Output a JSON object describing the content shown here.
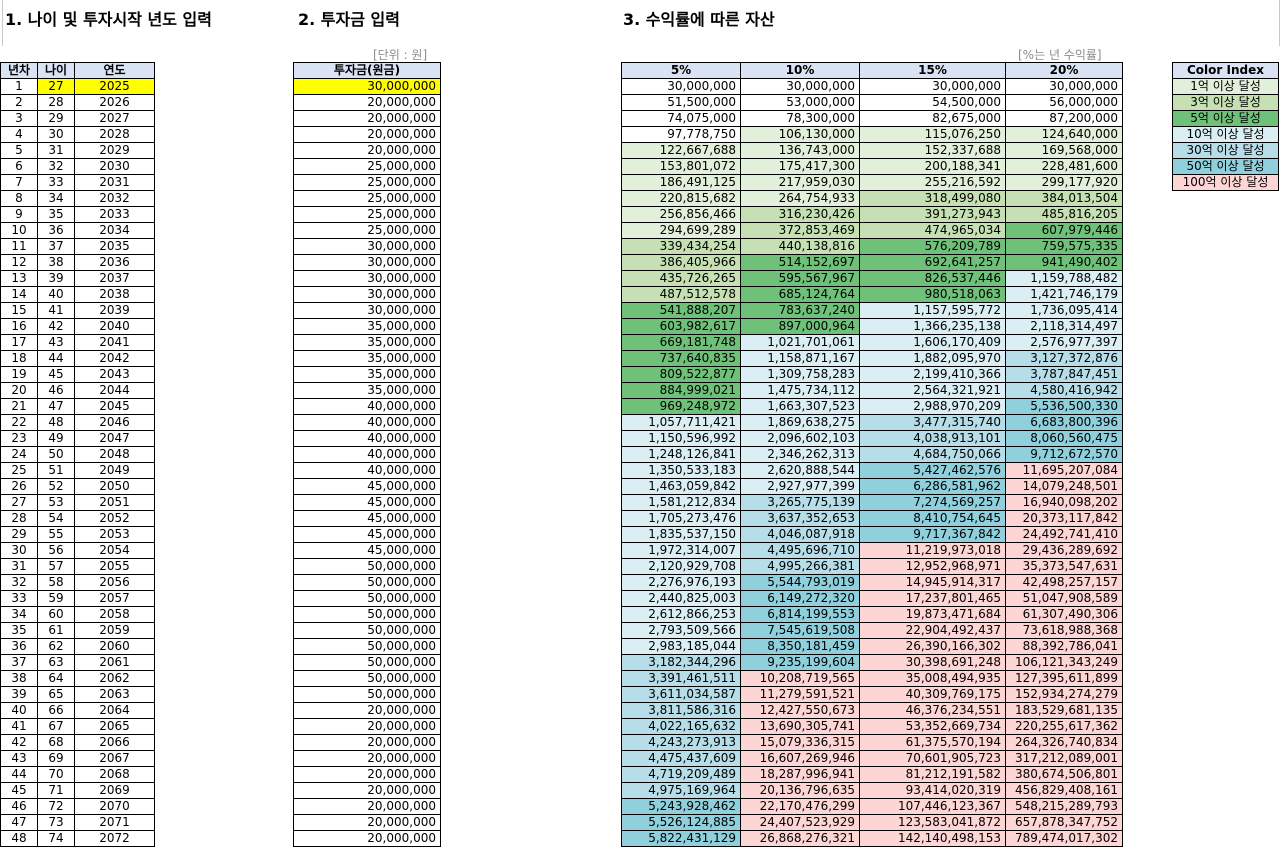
{
  "sections": {
    "s1": "1. 나이 및 투자시작 년도 입력",
    "s2": "2. 투자금 입력",
    "s3": "3. 수익률에 따른 자산"
  },
  "unit_note": "[단위 : 원]",
  "return_note": "[%는 년 수익률]",
  "year_table": {
    "headers": [
      "년차",
      "나이",
      "연도"
    ],
    "rows": [
      [
        "1",
        "27",
        "2025"
      ],
      [
        "2",
        "28",
        "2026"
      ],
      [
        "3",
        "29",
        "2027"
      ],
      [
        "4",
        "30",
        "2028"
      ],
      [
        "5",
        "31",
        "2029"
      ],
      [
        "6",
        "32",
        "2030"
      ],
      [
        "7",
        "33",
        "2031"
      ],
      [
        "8",
        "34",
        "2032"
      ],
      [
        "9",
        "35",
        "2033"
      ],
      [
        "10",
        "36",
        "2034"
      ],
      [
        "11",
        "37",
        "2035"
      ],
      [
        "12",
        "38",
        "2036"
      ],
      [
        "13",
        "39",
        "2037"
      ],
      [
        "14",
        "40",
        "2038"
      ],
      [
        "15",
        "41",
        "2039"
      ],
      [
        "16",
        "42",
        "2040"
      ],
      [
        "17",
        "43",
        "2041"
      ],
      [
        "18",
        "44",
        "2042"
      ],
      [
        "19",
        "45",
        "2043"
      ],
      [
        "20",
        "46",
        "2044"
      ],
      [
        "21",
        "47",
        "2045"
      ],
      [
        "22",
        "48",
        "2046"
      ],
      [
        "23",
        "49",
        "2047"
      ],
      [
        "24",
        "50",
        "2048"
      ],
      [
        "25",
        "51",
        "2049"
      ],
      [
        "26",
        "52",
        "2050"
      ],
      [
        "27",
        "53",
        "2051"
      ],
      [
        "28",
        "54",
        "2052"
      ],
      [
        "29",
        "55",
        "2053"
      ],
      [
        "30",
        "56",
        "2054"
      ],
      [
        "31",
        "57",
        "2055"
      ],
      [
        "32",
        "58",
        "2056"
      ],
      [
        "33",
        "59",
        "2057"
      ],
      [
        "34",
        "60",
        "2058"
      ],
      [
        "35",
        "61",
        "2059"
      ],
      [
        "36",
        "62",
        "2060"
      ],
      [
        "37",
        "63",
        "2061"
      ],
      [
        "38",
        "64",
        "2062"
      ],
      [
        "39",
        "65",
        "2063"
      ],
      [
        "40",
        "66",
        "2064"
      ],
      [
        "41",
        "67",
        "2065"
      ],
      [
        "42",
        "68",
        "2066"
      ],
      [
        "43",
        "69",
        "2067"
      ],
      [
        "44",
        "70",
        "2068"
      ],
      [
        "45",
        "71",
        "2069"
      ],
      [
        "46",
        "72",
        "2070"
      ],
      [
        "47",
        "73",
        "2071"
      ],
      [
        "48",
        "74",
        "2072"
      ]
    ]
  },
  "investment": {
    "header": "투자금(원금)",
    "values": [
      "30,000,000",
      "20,000,000",
      "20,000,000",
      "20,000,000",
      "20,000,000",
      "25,000,000",
      "25,000,000",
      "25,000,000",
      "25,000,000",
      "25,000,000",
      "30,000,000",
      "30,000,000",
      "30,000,000",
      "30,000,000",
      "30,000,000",
      "35,000,000",
      "35,000,000",
      "35,000,000",
      "35,000,000",
      "35,000,000",
      "40,000,000",
      "40,000,000",
      "40,000,000",
      "40,000,000",
      "40,000,000",
      "45,000,000",
      "45,000,000",
      "45,000,000",
      "45,000,000",
      "45,000,000",
      "50,000,000",
      "50,000,000",
      "50,000,000",
      "50,000,000",
      "50,000,000",
      "50,000,000",
      "50,000,000",
      "50,000,000",
      "50,000,000",
      "20,000,000",
      "20,000,000",
      "20,000,000",
      "20,000,000",
      "20,000,000",
      "20,000,000",
      "20,000,000",
      "20,000,000",
      "20,000,000"
    ]
  },
  "assets": {
    "headers": [
      "5%",
      "10%",
      "15%",
      "20%"
    ],
    "rows": [
      [
        "30,000,000",
        "30,000,000",
        "30,000,000",
        "30,000,000"
      ],
      [
        "51,500,000",
        "53,000,000",
        "54,500,000",
        "56,000,000"
      ],
      [
        "74,075,000",
        "78,300,000",
        "82,675,000",
        "87,200,000"
      ],
      [
        "97,778,750",
        "106,130,000",
        "115,076,250",
        "124,640,000"
      ],
      [
        "122,667,688",
        "136,743,000",
        "152,337,688",
        "169,568,000"
      ],
      [
        "153,801,072",
        "175,417,300",
        "200,188,341",
        "228,481,600"
      ],
      [
        "186,491,125",
        "217,959,030",
        "255,216,592",
        "299,177,920"
      ],
      [
        "220,815,682",
        "264,754,933",
        "318,499,080",
        "384,013,504"
      ],
      [
        "256,856,466",
        "316,230,426",
        "391,273,943",
        "485,816,205"
      ],
      [
        "294,699,289",
        "372,853,469",
        "474,965,034",
        "607,979,446"
      ],
      [
        "339,434,254",
        "440,138,816",
        "576,209,789",
        "759,575,335"
      ],
      [
        "386,405,966",
        "514,152,697",
        "692,641,257",
        "941,490,402"
      ],
      [
        "435,726,265",
        "595,567,967",
        "826,537,446",
        "1,159,788,482"
      ],
      [
        "487,512,578",
        "685,124,764",
        "980,518,063",
        "1,421,746,179"
      ],
      [
        "541,888,207",
        "783,637,240",
        "1,157,595,772",
        "1,736,095,414"
      ],
      [
        "603,982,617",
        "897,000,964",
        "1,366,235,138",
        "2,118,314,497"
      ],
      [
        "669,181,748",
        "1,021,701,061",
        "1,606,170,409",
        "2,576,977,397"
      ],
      [
        "737,640,835",
        "1,158,871,167",
        "1,882,095,970",
        "3,127,372,876"
      ],
      [
        "809,522,877",
        "1,309,758,283",
        "2,199,410,366",
        "3,787,847,451"
      ],
      [
        "884,999,021",
        "1,475,734,112",
        "2,564,321,921",
        "4,580,416,942"
      ],
      [
        "969,248,972",
        "1,663,307,523",
        "2,988,970,209",
        "5,536,500,330"
      ],
      [
        "1,057,711,421",
        "1,869,638,275",
        "3,477,315,740",
        "6,683,800,396"
      ],
      [
        "1,150,596,992",
        "2,096,602,103",
        "4,038,913,101",
        "8,060,560,475"
      ],
      [
        "1,248,126,841",
        "2,346,262,313",
        "4,684,750,066",
        "9,712,672,570"
      ],
      [
        "1,350,533,183",
        "2,620,888,544",
        "5,427,462,576",
        "11,695,207,084"
      ],
      [
        "1,463,059,842",
        "2,927,977,399",
        "6,286,581,962",
        "14,079,248,501"
      ],
      [
        "1,581,212,834",
        "3,265,775,139",
        "7,274,569,257",
        "16,940,098,202"
      ],
      [
        "1,705,273,476",
        "3,637,352,653",
        "8,410,754,645",
        "20,373,117,842"
      ],
      [
        "1,835,537,150",
        "4,046,087,918",
        "9,717,367,842",
        "24,492,741,410"
      ],
      [
        "1,972,314,007",
        "4,495,696,710",
        "11,219,973,018",
        "29,436,289,692"
      ],
      [
        "2,120,929,708",
        "4,995,266,381",
        "12,952,968,971",
        "35,373,547,631"
      ],
      [
        "2,276,976,193",
        "5,544,793,019",
        "14,945,914,317",
        "42,498,257,157"
      ],
      [
        "2,440,825,003",
        "6,149,272,320",
        "17,237,801,465",
        "51,047,908,589"
      ],
      [
        "2,612,866,253",
        "6,814,199,553",
        "19,873,471,684",
        "61,307,490,306"
      ],
      [
        "2,793,509,566",
        "7,545,619,508",
        "22,904,492,437",
        "73,618,988,368"
      ],
      [
        "2,983,185,044",
        "8,350,181,459",
        "26,390,166,302",
        "88,392,786,041"
      ],
      [
        "3,182,344,296",
        "9,235,199,604",
        "30,398,691,248",
        "106,121,343,249"
      ],
      [
        "3,391,461,511",
        "10,208,719,565",
        "35,008,494,935",
        "127,395,611,899"
      ],
      [
        "3,611,034,587",
        "11,279,591,521",
        "40,309,769,175",
        "152,934,274,279"
      ],
      [
        "3,811,586,316",
        "12,427,550,673",
        "46,376,234,551",
        "183,529,681,135"
      ],
      [
        "4,022,165,632",
        "13,690,305,741",
        "53,352,669,734",
        "220,255,617,362"
      ],
      [
        "4,243,273,913",
        "15,079,336,315",
        "61,375,570,194",
        "264,326,740,834"
      ],
      [
        "4,475,437,609",
        "16,607,269,946",
        "70,601,905,723",
        "317,212,089,001"
      ],
      [
        "4,719,209,489",
        "18,287,996,941",
        "81,212,191,582",
        "380,674,506,801"
      ],
      [
        "4,975,169,964",
        "20,136,796,635",
        "93,414,020,319",
        "456,829,408,161"
      ],
      [
        "5,243,928,462",
        "22,170,476,299",
        "107,446,123,367",
        "548,215,289,793"
      ],
      [
        "5,526,124,885",
        "24,407,523,929",
        "123,583,041,872",
        "657,878,347,752"
      ],
      [
        "5,822,431,129",
        "26,868,276,321",
        "142,140,498,153",
        "789,474,017,302"
      ]
    ]
  },
  "color_index": {
    "header": "Color Index",
    "items": [
      {
        "label": "1억 이상 달성",
        "color": "#e2efda"
      },
      {
        "label": "3억 이상 달성",
        "color": "#c6e0b4"
      },
      {
        "label": "5억 이상 달성",
        "color": "#6fc17a"
      },
      {
        "label": "10억 이상 달성",
        "color": "#daeef3"
      },
      {
        "label": "30억 이상 달성",
        "color": "#b7dee8"
      },
      {
        "label": "50억 이상 달성",
        "color": "#8fd0dc"
      },
      {
        "label": "100억 이상 달성",
        "color": "#fcd5d4"
      }
    ]
  }
}
